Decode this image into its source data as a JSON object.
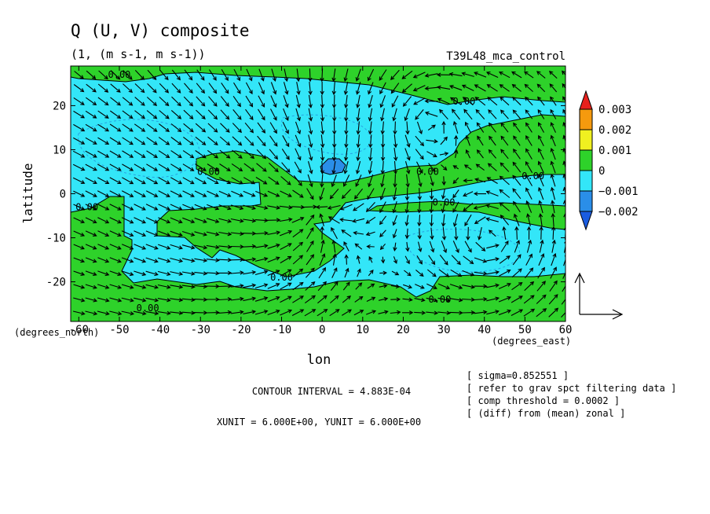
{
  "chart_data": {
    "type": "heatmap",
    "title": "Q (U, V) composite",
    "subtitle": "(1, (m s-1, m s-1))",
    "run_label": "T39L48_mca_control",
    "xlabel": "lon",
    "ylabel": "latitude",
    "x_unit_label": "(degrees_east)",
    "y_unit_label": "(degrees_north)",
    "xlim": [
      -62,
      60
    ],
    "ylim": [
      -29,
      29
    ],
    "x_ticks": [
      {
        "value": -60,
        "label": "-60"
      },
      {
        "value": -50,
        "label": "-50"
      },
      {
        "value": -40,
        "label": "-40"
      },
      {
        "value": -30,
        "label": "-30"
      },
      {
        "value": -20,
        "label": "-20"
      },
      {
        "value": -10,
        "label": "-10"
      },
      {
        "value": 0,
        "label": "0"
      },
      {
        "value": 10,
        "label": "10"
      },
      {
        "value": 20,
        "label": "20"
      },
      {
        "value": 30,
        "label": "30"
      },
      {
        "value": 40,
        "label": "40"
      },
      {
        "value": 50,
        "label": "50"
      },
      {
        "value": 60,
        "label": "60"
      }
    ],
    "y_ticks": [
      {
        "value": -20,
        "label": "-20"
      },
      {
        "value": -10,
        "label": "-10"
      },
      {
        "value": 0,
        "label": "0"
      },
      {
        "value": 10,
        "label": "10"
      },
      {
        "value": 20,
        "label": "20"
      }
    ],
    "contour_labels": [
      {
        "lon": -50,
        "lat": 27,
        "text": "0.00"
      },
      {
        "lon": 35,
        "lat": 21,
        "text": "0.00"
      },
      {
        "lon": -28,
        "lat": 5,
        "text": "0.00"
      },
      {
        "lon": 26,
        "lat": 5,
        "text": "0.00"
      },
      {
        "lon": 52,
        "lat": 4,
        "text": "0.00"
      },
      {
        "lon": 30,
        "lat": -2,
        "text": "0.00"
      },
      {
        "lon": -58,
        "lat": -3,
        "text": "0.00"
      },
      {
        "lon": -10,
        "lat": -19,
        "text": "0.00"
      },
      {
        "lon": 29,
        "lat": -24,
        "text": "0.00"
      },
      {
        "lon": -43,
        "lat": -26,
        "text": "0.00"
      }
    ],
    "colorbar": {
      "labels": [
        "0.003",
        "0.002",
        "0.001",
        "0",
        "−0.001",
        "−0.002"
      ],
      "colors": [
        "#e8211d",
        "#f59a0e",
        "#f0f020",
        "#2ed22a",
        "#33e6f8",
        "#2a8ee8",
        "#1a5ce0"
      ],
      "level_values": [
        0.003,
        0.002,
        0.001,
        0,
        -0.001,
        -0.002
      ]
    },
    "field_colors": {
      "positive": "#2ed22a",
      "negative": "#33e6f8",
      "strong_negative": "#2a8ee8"
    },
    "contour_interval": "CONTOUR INTERVAL = 4.883E-04",
    "units_line": "XUNIT = 6.000E+00, YUNIT = 6.000E+00",
    "notes": [
      "[ sigma=0.852551 ]",
      "[ refer to grav spct filtering data ]",
      "[ comp threshold = 0.0002 ]",
      "[ (diff) from (mean) zonal ]"
    ],
    "vector_grid": {
      "lon_start": -60,
      "lon_end": 60,
      "lon_step": 3,
      "lat_start": -27,
      "lat_end": 27,
      "lat_step": 3
    },
    "vector_centers": [
      {
        "lon": -2,
        "lat": -2,
        "kind": "convergent"
      },
      {
        "lon": 25,
        "lat": 17,
        "kind": "cyclonic"
      },
      {
        "lon": 42,
        "lat": -10,
        "kind": "cyclonic"
      }
    ]
  }
}
